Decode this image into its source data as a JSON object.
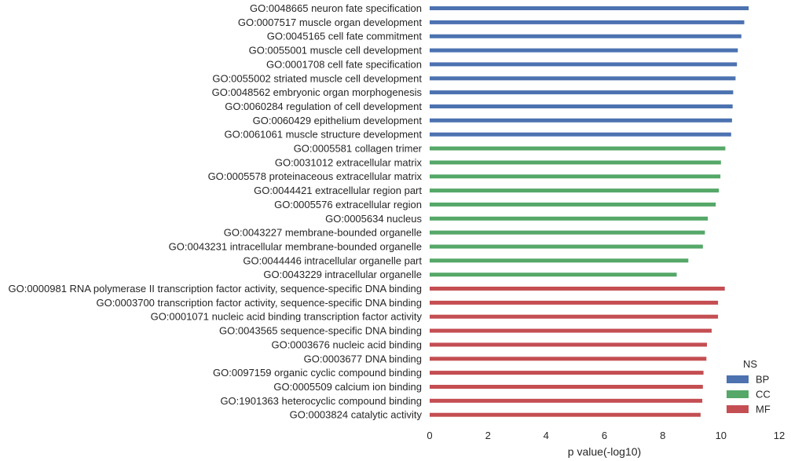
{
  "chart_data": {
    "type": "bar",
    "orientation": "horizontal",
    "xlabel": "p value(-log10)",
    "ylabel": "",
    "xlim": [
      0,
      12
    ],
    "xticks": [
      0,
      2,
      4,
      6,
      8,
      10,
      12
    ],
    "grid": false,
    "legend": {
      "title": "NS",
      "placement": "bottom-right",
      "entries": [
        {
          "name": "BP",
          "color": "#4c72b0"
        },
        {
          "name": "CC",
          "color": "#55a868"
        },
        {
          "name": "MF",
          "color": "#c44e52"
        }
      ]
    },
    "categories": [
      "GO:0048665 neuron fate specification",
      "GO:0007517 muscle organ development",
      "GO:0045165 cell fate commitment",
      "GO:0055001 muscle cell development",
      "GO:0001708 cell fate specification",
      "GO:0055002 striated muscle cell development",
      "GO:0048562 embryonic organ morphogenesis",
      "GO:0060284 regulation of cell development",
      "GO:0060429 epithelium development",
      "GO:0061061 muscle structure development",
      "GO:0005581 collagen trimer",
      "GO:0031012 extracellular matrix",
      "GO:0005578 proteinaceous extracellular matrix",
      "GO:0044421 extracellular region part",
      "GO:0005576 extracellular region",
      "GO:0005634 nucleus",
      "GO:0043227 membrane-bounded organelle",
      "GO:0043231 intracellular membrane-bounded organelle",
      "GO:0044446 intracellular organelle part",
      "GO:0043229 intracellular organelle",
      "GO:0000981 RNA polymerase II transcription factor activity, sequence-specific DNA binding",
      "GO:0003700 transcription factor activity, sequence-specific DNA binding",
      "GO:0001071 nucleic acid binding transcription factor activity",
      "GO:0043565 sequence-specific DNA binding",
      "GO:0003676 nucleic acid binding",
      "GO:0003677 DNA binding",
      "GO:0097159 organic cyclic compound binding",
      "GO:0005509 calcium ion binding",
      "GO:1901363 heterocyclic compound binding",
      "GO:0003824 catalytic activity"
    ],
    "values": [
      10.95,
      10.8,
      10.7,
      10.58,
      10.55,
      10.5,
      10.42,
      10.4,
      10.38,
      10.35,
      10.15,
      10.0,
      9.98,
      9.93,
      9.82,
      9.55,
      9.45,
      9.38,
      8.88,
      8.48,
      10.13,
      9.9,
      9.9,
      9.68,
      9.52,
      9.5,
      9.4,
      9.38,
      9.36,
      9.3
    ],
    "groups": [
      "BP",
      "BP",
      "BP",
      "BP",
      "BP",
      "BP",
      "BP",
      "BP",
      "BP",
      "BP",
      "CC",
      "CC",
      "CC",
      "CC",
      "CC",
      "CC",
      "CC",
      "CC",
      "CC",
      "CC",
      "MF",
      "MF",
      "MF",
      "MF",
      "MF",
      "MF",
      "MF",
      "MF",
      "MF",
      "MF"
    ]
  }
}
